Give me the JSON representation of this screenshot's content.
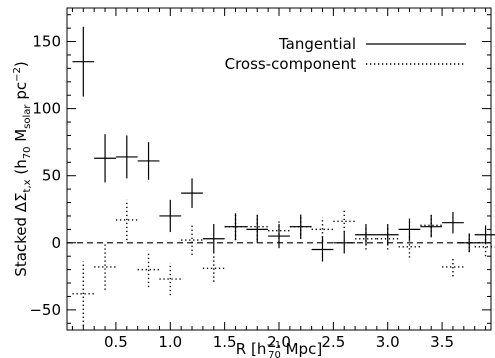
{
  "chart_data": {
    "type": "scatter",
    "xlabel": "R [h70^-1 Mpc]",
    "ylabel": "Stacked ΔΣ_t,x (h70 Msolar pc^-2)",
    "xlim": [
      0.05,
      3.95
    ],
    "ylim": [
      -65,
      175
    ],
    "xticks": [
      "0.5",
      "1.0",
      "1.5",
      "2.0",
      "2.5",
      "3.0",
      "3.5"
    ],
    "yticks": [
      "-50",
      "0",
      "50",
      "100",
      "150"
    ],
    "reference_line": {
      "y": 0,
      "style": "dashed"
    },
    "legend_placement": "top-right",
    "series": [
      {
        "name": "Tangential",
        "style": "solid",
        "points": [
          {
            "x": 0.2,
            "y": 135,
            "xerr": 0.1,
            "yerr": 26
          },
          {
            "x": 0.4,
            "y": 63,
            "xerr": 0.1,
            "yerr": 18
          },
          {
            "x": 0.6,
            "y": 64,
            "xerr": 0.1,
            "yerr": 16
          },
          {
            "x": 0.8,
            "y": 61,
            "xerr": 0.1,
            "yerr": 14
          },
          {
            "x": 1.0,
            "y": 20,
            "xerr": 0.1,
            "yerr": 12
          },
          {
            "x": 1.2,
            "y": 37,
            "xerr": 0.1,
            "yerr": 11
          },
          {
            "x": 1.4,
            "y": 3,
            "xerr": 0.1,
            "yerr": 11
          },
          {
            "x": 1.6,
            "y": 12,
            "xerr": 0.1,
            "yerr": 10
          },
          {
            "x": 1.8,
            "y": 10,
            "xerr": 0.1,
            "yerr": 10
          },
          {
            "x": 2.0,
            "y": 5,
            "xerr": 0.1,
            "yerr": 9
          },
          {
            "x": 2.2,
            "y": 12,
            "xerr": 0.1,
            "yerr": 9
          },
          {
            "x": 2.4,
            "y": -5,
            "xerr": 0.1,
            "yerr": 9
          },
          {
            "x": 2.6,
            "y": 0,
            "xerr": 0.1,
            "yerr": 8
          },
          {
            "x": 2.8,
            "y": 6,
            "xerr": 0.1,
            "yerr": 8
          },
          {
            "x": 3.0,
            "y": 6,
            "xerr": 0.1,
            "yerr": 8
          },
          {
            "x": 3.2,
            "y": 10,
            "xerr": 0.1,
            "yerr": 8
          },
          {
            "x": 3.4,
            "y": 12,
            "xerr": 0.1,
            "yerr": 8
          },
          {
            "x": 3.6,
            "y": 15,
            "xerr": 0.1,
            "yerr": 8
          },
          {
            "x": 3.75,
            "y": 0,
            "xerr": 0.1,
            "yerr": 7
          },
          {
            "x": 3.9,
            "y": 6,
            "xerr": 0.1,
            "yerr": 7
          }
        ]
      },
      {
        "name": "Cross-component",
        "style": "dotted",
        "points": [
          {
            "x": 0.2,
            "y": -38,
            "xerr": 0.1,
            "yerr": 24
          },
          {
            "x": 0.4,
            "y": -18,
            "xerr": 0.1,
            "yerr": 17
          },
          {
            "x": 0.6,
            "y": 17,
            "xerr": 0.1,
            "yerr": 15
          },
          {
            "x": 0.8,
            "y": -20,
            "xerr": 0.1,
            "yerr": 13
          },
          {
            "x": 1.0,
            "y": -27,
            "xerr": 0.1,
            "yerr": 12
          },
          {
            "x": 1.2,
            "y": 2,
            "xerr": 0.1,
            "yerr": 11
          },
          {
            "x": 1.4,
            "y": -19,
            "xerr": 0.1,
            "yerr": 10
          },
          {
            "x": 1.6,
            "y": 12,
            "xerr": 0.1,
            "yerr": 10
          },
          {
            "x": 1.8,
            "y": 12,
            "xerr": 0.1,
            "yerr": 10
          },
          {
            "x": 2.0,
            "y": 9,
            "xerr": 0.1,
            "yerr": 9
          },
          {
            "x": 2.2,
            "y": 12,
            "xerr": 0.1,
            "yerr": 9
          },
          {
            "x": 2.4,
            "y": 10,
            "xerr": 0.1,
            "yerr": 9
          },
          {
            "x": 2.6,
            "y": 16,
            "xerr": 0.1,
            "yerr": 8
          },
          {
            "x": 2.8,
            "y": 3,
            "xerr": 0.1,
            "yerr": 8
          },
          {
            "x": 3.0,
            "y": 3,
            "xerr": 0.1,
            "yerr": 8
          },
          {
            "x": 3.2,
            "y": -3,
            "xerr": 0.1,
            "yerr": 8
          },
          {
            "x": 3.4,
            "y": 13,
            "xerr": 0.1,
            "yerr": 8
          },
          {
            "x": 3.6,
            "y": -18,
            "xerr": 0.1,
            "yerr": 7
          },
          {
            "x": 3.75,
            "y": 0,
            "xerr": 0.1,
            "yerr": 7
          },
          {
            "x": 3.9,
            "y": -3,
            "xerr": 0.1,
            "yerr": 7
          }
        ]
      }
    ]
  },
  "legend": {
    "tangential_label": "Tangential",
    "cross_label": "Cross-component"
  }
}
